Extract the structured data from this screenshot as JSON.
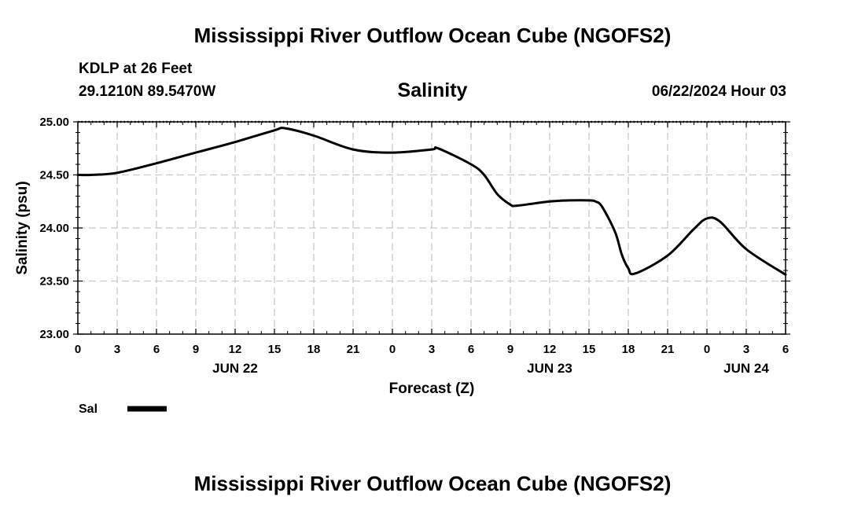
{
  "page": {
    "title_top": "Mississippi River Outflow Ocean Cube (NGOFS2)",
    "title_bottom": "Mississippi River Outflow Ocean Cube (NGOFS2)",
    "station": "KDLP at 26 Feet",
    "coordinates": "29.1210N  89.5470W",
    "datetime": "06/22/2024 Hour 03"
  },
  "chart_data": {
    "type": "line",
    "title": "Salinity",
    "xlabel": "Forecast (Z)",
    "ylabel": "Salinity (psu)",
    "xlim": [
      0,
      54
    ],
    "ylim": [
      23.0,
      25.0
    ],
    "grid": true,
    "x_ticks": [
      0,
      3,
      6,
      9,
      12,
      15,
      18,
      21,
      24,
      27,
      30,
      33,
      36,
      39,
      42,
      45,
      48,
      51,
      54
    ],
    "x_tick_labels": [
      "0",
      "3",
      "6",
      "9",
      "12",
      "15",
      "18",
      "21",
      "0",
      "3",
      "6",
      "9",
      "12",
      "15",
      "18",
      "21",
      "0",
      "3",
      "6"
    ],
    "y_ticks": [
      23.0,
      23.5,
      24.0,
      24.5,
      25.0
    ],
    "y_tick_labels": [
      "23.00",
      "23.50",
      "24.00",
      "24.50",
      "25.00"
    ],
    "date_labels": [
      {
        "x": 12,
        "label": "JUN 22"
      },
      {
        "x": 36,
        "label": "JUN 23"
      },
      {
        "x": 51,
        "label": "JUN 24"
      }
    ],
    "legend": {
      "position": "bottom-left",
      "entries": [
        {
          "label": "Sal",
          "color": "#000000"
        }
      ]
    },
    "series": [
      {
        "name": "Sal",
        "color": "#000000",
        "x": [
          0,
          1,
          3,
          6,
          9,
          12,
          15,
          15.8,
          18,
          21,
          24,
          27,
          27.5,
          30,
          31,
          32,
          33,
          33.5,
          36,
          37.5,
          39,
          39.5,
          40,
          41,
          41.5,
          42,
          42.5,
          45,
          47,
          48,
          49,
          51,
          54
        ],
        "values": [
          24.5,
          24.5,
          24.52,
          24.61,
          24.71,
          24.81,
          24.92,
          24.94,
          24.87,
          24.74,
          24.71,
          24.74,
          24.75,
          24.6,
          24.5,
          24.32,
          24.22,
          24.21,
          24.25,
          24.26,
          24.26,
          24.25,
          24.2,
          23.96,
          23.75,
          23.62,
          23.57,
          23.74,
          23.99,
          24.09,
          24.06,
          23.8,
          23.56
        ]
      }
    ]
  }
}
